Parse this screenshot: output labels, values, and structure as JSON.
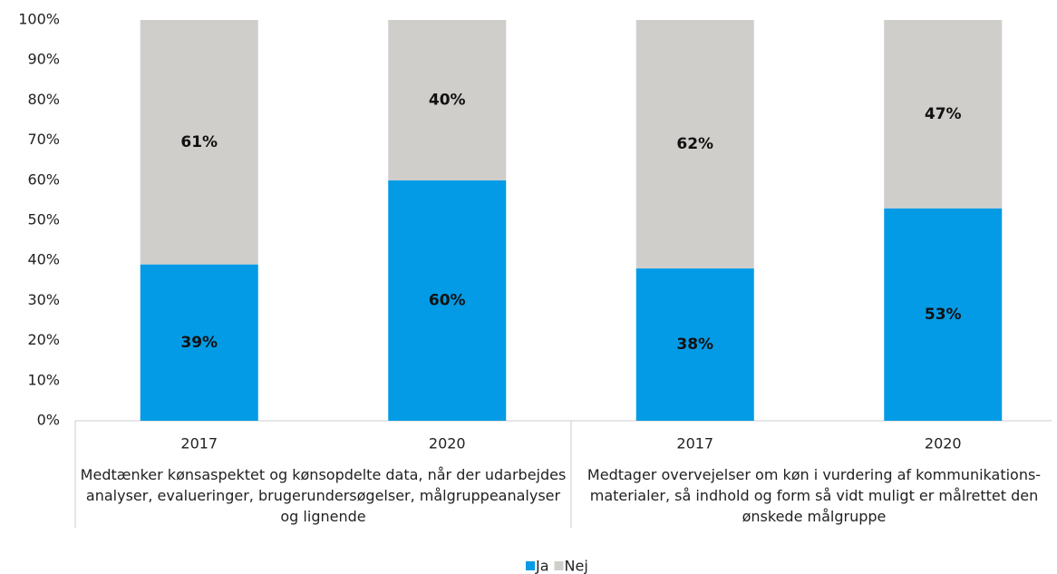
{
  "chart_data": {
    "type": "stacked_bar",
    "groups": [
      {
        "label": "Medtænker kønsaspektet og kønsopdelte data, når der udarbejdes analyser, evalueringer, brugerundersøgelser, målgruppeanalyser og lignende",
        "categories": [
          "2017",
          "2020"
        ]
      },
      {
        "label": "Medtager overvejelser om køn i vurdering af kommunikations-materialer, så indhold og form så vidt muligt er målrettet den ønskede målgruppe",
        "categories": [
          "2017",
          "2020"
        ]
      }
    ],
    "series": [
      {
        "name": "Ja",
        "color": "#039be5",
        "values": [
          39,
          60,
          38,
          53
        ],
        "value_labels": [
          "39%",
          "60%",
          "38%",
          "53%"
        ]
      },
      {
        "name": "Nej",
        "color": "#d0cecb",
        "values": [
          61,
          40,
          62,
          47
        ],
        "value_labels": [
          "61%",
          "40%",
          "62%",
          "47%"
        ]
      }
    ],
    "ylim": [
      0,
      100
    ],
    "yticks": [
      {
        "value": 0,
        "label": "0%"
      },
      {
        "value": 10,
        "label": "10%"
      },
      {
        "value": 20,
        "label": "20%"
      },
      {
        "value": 30,
        "label": "30%"
      },
      {
        "value": 40,
        "label": "40%"
      },
      {
        "value": 50,
        "label": "50%"
      },
      {
        "value": 60,
        "label": "60%"
      },
      {
        "value": 70,
        "label": "70%"
      },
      {
        "value": 80,
        "label": "80%"
      },
      {
        "value": 90,
        "label": "90%"
      },
      {
        "value": 100,
        "label": "100%"
      }
    ],
    "legend": "bottom"
  }
}
